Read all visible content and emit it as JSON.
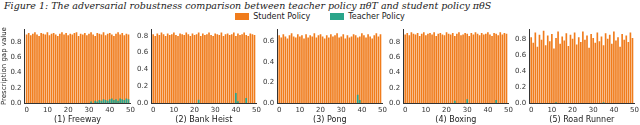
{
  "title": "Figure 1: The adversarial robustness comparison between teacher policy πθT and student policy πθS",
  "chart_data": [
    {
      "type": "bar",
      "x_label": "(1) Freeway",
      "y_label": "Prescription gap value",
      "grid": false,
      "x": [
        0,
        1,
        2,
        3,
        4,
        5,
        6,
        7,
        8,
        9,
        10,
        11,
        12,
        13,
        14,
        15,
        16,
        17,
        18,
        19,
        20,
        21,
        22,
        23,
        24,
        25,
        26,
        27,
        28,
        29,
        30,
        31,
        32,
        33,
        34,
        35,
        36,
        37,
        38,
        39,
        40,
        41,
        42,
        43,
        44,
        45,
        46,
        47,
        48,
        49
      ],
      "xlim": [
        -1,
        50
      ],
      "xticks": [
        0,
        10,
        20,
        30,
        40,
        50
      ],
      "ylim": [
        0,
        0.97
      ],
      "yticks": [
        {
          "value": 0,
          "label": "0.0"
        },
        0.2,
        0.4,
        0.6,
        0.8
      ],
      "series": [
        {
          "name": "Student Policy",
          "color": "#f07c1c",
          "values": [
            0.9,
            0.92,
            0.89,
            0.91,
            0.93,
            0.9,
            0.88,
            0.92,
            0.91,
            0.9,
            0.93,
            0.89,
            0.91,
            0.92,
            0.9,
            0.88,
            0.91,
            0.93,
            0.9,
            0.92,
            0.89,
            0.91,
            0.9,
            0.92,
            0.93,
            0.88,
            0.91,
            0.9,
            0.92,
            0.89,
            0.91,
            0.93,
            0.9,
            0.88,
            0.92,
            0.91,
            0.9,
            0.93,
            0.89,
            0.91,
            0.92,
            0.9,
            0.88,
            0.91,
            0.93,
            0.9,
            0.92,
            0.89,
            0.91,
            0.9
          ]
        },
        {
          "name": "Teacher Policy",
          "color": "#2aa58a",
          "values": [
            0,
            0,
            0,
            0,
            0,
            0,
            0,
            0,
            0,
            0,
            0,
            0,
            0,
            0,
            0,
            0,
            0,
            0,
            0,
            0,
            0,
            0,
            0,
            0,
            0,
            0,
            0,
            0,
            0,
            0,
            0,
            0.02,
            0,
            0.03,
            0.02,
            0.04,
            0.03,
            0.05,
            0.04,
            0.03,
            0.05,
            0.06,
            0.04,
            0.05,
            0.03,
            0.06,
            0.05,
            0.04,
            0.06,
            0.05
          ]
        }
      ]
    },
    {
      "type": "bar",
      "x_label": "(2) Bank Heist",
      "grid": false,
      "x": [
        0,
        1,
        2,
        3,
        4,
        5,
        6,
        7,
        8,
        9,
        10,
        11,
        12,
        13,
        14,
        15,
        16,
        17,
        18,
        19,
        20,
        21,
        22,
        23,
        24,
        25,
        26,
        27,
        28,
        29,
        30,
        31,
        32,
        33,
        34,
        35,
        36,
        37,
        38,
        39,
        40,
        41,
        42,
        43,
        44,
        45,
        46,
        47,
        48,
        49
      ],
      "xlim": [
        -1,
        50
      ],
      "xticks": [
        0,
        10,
        20,
        30,
        40,
        50
      ],
      "ylim": [
        0,
        0.88
      ],
      "yticks": [
        {
          "value": 0,
          "label": "0.0"
        },
        0.2,
        0.4,
        0.6,
        0.8
      ],
      "series": [
        {
          "name": "Student Policy",
          "color": "#f07c1c",
          "values": [
            0.82,
            0.8,
            0.83,
            0.81,
            0.84,
            0.82,
            0.8,
            0.83,
            0.81,
            0.82,
            0.84,
            0.81,
            0.8,
            0.83,
            0.82,
            0.81,
            0.84,
            0.82,
            0.8,
            0.83,
            0.81,
            0.82,
            0.84,
            0.8,
            0.83,
            0.81,
            0.82,
            0.84,
            0.81,
            0.8,
            0.83,
            0.82,
            0.81,
            0.84,
            0.8,
            0.82,
            0.83,
            0.81,
            0.82,
            0.84,
            0.8,
            0.83,
            0.81,
            0.82,
            0.84,
            0.81,
            0.8,
            0.83,
            0.82,
            0.81
          ]
        },
        {
          "name": "Teacher Policy",
          "color": "#2aa58a",
          "values": [
            0,
            0,
            0,
            0,
            0,
            0,
            0,
            0,
            0,
            0,
            0,
            0,
            0,
            0,
            0,
            0,
            0,
            0,
            0,
            0,
            0,
            0,
            0.04,
            0,
            0,
            0,
            0,
            0,
            0,
            0,
            0,
            0,
            0,
            0,
            0,
            0,
            0,
            0,
            0,
            0,
            0.12,
            0.02,
            0,
            0,
            0,
            0.06,
            0,
            0,
            0,
            0
          ]
        }
      ]
    },
    {
      "type": "bar",
      "x_label": "(3) Pong",
      "grid": false,
      "x": [
        0,
        1,
        2,
        3,
        4,
        5,
        6,
        7,
        8,
        9,
        10,
        11,
        12,
        13,
        14,
        15,
        16,
        17,
        18,
        19,
        20,
        21,
        22,
        23,
        24,
        25,
        26,
        27,
        28,
        29,
        30,
        31,
        32,
        33,
        34,
        35,
        36,
        37,
        38,
        39,
        40,
        41,
        42,
        43,
        44,
        45,
        46,
        47,
        48,
        49
      ],
      "xlim": [
        -1,
        50
      ],
      "xticks": [
        0,
        10,
        20,
        30,
        40,
        50
      ],
      "ylim": [
        0,
        0.72
      ],
      "yticks": [
        {
          "value": 0,
          "label": "0.0"
        },
        0.2,
        0.4,
        0.6
      ],
      "series": [
        {
          "name": "Student Policy",
          "color": "#f07c1c",
          "values": [
            0.66,
            0.64,
            0.67,
            0.65,
            0.63,
            0.66,
            0.68,
            0.65,
            0.64,
            0.67,
            0.65,
            0.66,
            0.63,
            0.67,
            0.64,
            0.66,
            0.65,
            0.68,
            0.64,
            0.66,
            0.67,
            0.65,
            0.63,
            0.66,
            0.64,
            0.67,
            0.65,
            0.66,
            0.68,
            0.64,
            0.65,
            0.67,
            0.63,
            0.66,
            0.64,
            0.65,
            0.67,
            0.66,
            0.64,
            0.65,
            0.68,
            0.66,
            0.64,
            0.67,
            0.65,
            0.63,
            0.66,
            0.68,
            0.65,
            0.67
          ]
        },
        {
          "name": "Teacher Policy",
          "color": "#2aa58a",
          "values": [
            0,
            0,
            0,
            0,
            0,
            0,
            0,
            0,
            0,
            0,
            0,
            0,
            0,
            0,
            0,
            0,
            0,
            0,
            0,
            0,
            0,
            0,
            0,
            0,
            0,
            0,
            0,
            0,
            0,
            0,
            0,
            0,
            0,
            0,
            0,
            0,
            0,
            0,
            0.08,
            0.03,
            0,
            0,
            0,
            0,
            0,
            0,
            0,
            0,
            0,
            0
          ]
        }
      ]
    },
    {
      "type": "bar",
      "x_label": "(4) Boxing",
      "grid": false,
      "x": [
        0,
        1,
        2,
        3,
        4,
        5,
        6,
        7,
        8,
        9,
        10,
        11,
        12,
        13,
        14,
        15,
        16,
        17,
        18,
        19,
        20,
        21,
        22,
        23,
        24,
        25,
        26,
        27,
        28,
        29,
        30,
        31,
        32,
        33,
        34,
        35,
        36,
        37,
        38,
        39,
        40,
        41,
        42,
        43,
        44,
        45,
        46,
        47,
        48,
        49
      ],
      "xlim": [
        -1,
        50
      ],
      "xticks": [
        0,
        10,
        20,
        30,
        40,
        50
      ],
      "ylim": [
        0,
        0.97
      ],
      "yticks": [
        {
          "value": 0,
          "label": "0.0"
        },
        0.2,
        0.4,
        0.6,
        0.8
      ],
      "series": [
        {
          "name": "Student Policy",
          "color": "#f07c1c",
          "values": [
            0.9,
            0.92,
            0.89,
            0.93,
            0.91,
            0.9,
            0.92,
            0.88,
            0.91,
            0.93,
            0.89,
            0.91,
            0.92,
            0.9,
            0.93,
            0.88,
            0.91,
            0.92,
            0.9,
            0.89,
            0.93,
            0.91,
            0.9,
            0.92,
            0.88,
            0.91,
            0.93,
            0.89,
            0.9,
            0.92,
            0.91,
            0.88,
            0.92,
            0.9,
            0.93,
            0.91,
            0.89,
            0.92,
            0.9,
            0.91,
            0.93,
            0.9,
            0.88,
            0.92,
            0.91,
            0.89,
            0.93,
            0.9,
            0.92,
            0.91
          ]
        },
        {
          "name": "Teacher Policy",
          "color": "#2aa58a",
          "values": [
            0,
            0,
            0,
            0,
            0,
            0,
            0,
            0,
            0,
            0,
            0,
            0,
            0,
            0,
            0,
            0,
            0,
            0,
            0,
            0,
            0,
            0,
            0,
            0,
            0.03,
            0,
            0,
            0,
            0,
            0,
            0.05,
            0,
            0,
            0,
            0,
            0,
            0,
            0,
            0,
            0,
            0,
            0,
            0,
            0,
            0.04,
            0,
            0,
            0,
            0,
            0
          ]
        }
      ]
    },
    {
      "type": "bar",
      "x_label": "(5) Road Runner",
      "grid": false,
      "x": [
        0,
        1,
        2,
        3,
        4,
        5,
        6,
        7,
        8,
        9,
        10,
        11,
        12,
        13,
        14,
        15,
        16,
        17,
        18,
        19,
        20,
        21,
        22,
        23,
        24,
        25,
        26,
        27,
        28,
        29,
        30,
        31,
        32,
        33,
        34,
        35,
        36,
        37,
        38,
        39,
        40,
        41,
        42,
        43,
        44,
        45,
        46,
        47,
        48,
        49
      ],
      "xlim": [
        -1,
        50
      ],
      "xticks": [
        0,
        10,
        20,
        30,
        40,
        50
      ],
      "ylim": [
        0,
        0.92
      ],
      "yticks": [
        {
          "value": 0,
          "label": "0.0"
        },
        0.2,
        0.4,
        0.6,
        0.8
      ],
      "series": [
        {
          "name": "Student Policy",
          "color": "#f07c1c",
          "values": [
            0.82,
            0.75,
            0.88,
            0.7,
            0.85,
            0.79,
            0.9,
            0.72,
            0.84,
            0.77,
            0.86,
            0.68,
            0.81,
            0.89,
            0.74,
            0.83,
            0.78,
            0.87,
            0.71,
            0.85,
            0.8,
            0.88,
            0.73,
            0.82,
            0.76,
            0.89,
            0.79,
            0.84,
            0.69,
            0.86,
            0.81,
            0.75,
            0.88,
            0.77,
            0.83,
            0.72,
            0.87,
            0.8,
            0.85,
            0.74,
            0.89,
            0.78,
            0.82,
            0.7,
            0.86,
            0.79,
            0.84,
            0.76,
            0.88,
            0.81
          ]
        },
        {
          "name": "Teacher Policy",
          "color": "#2aa58a",
          "values": [
            0,
            0,
            0,
            0,
            0,
            0,
            0,
            0,
            0,
            0,
            0,
            0,
            0.01,
            0,
            0,
            0,
            0,
            0,
            0,
            0,
            0,
            0,
            0,
            0,
            0,
            0,
            0,
            0,
            0,
            0,
            0,
            0,
            0,
            0,
            0,
            0.01,
            0,
            0,
            0,
            0,
            0,
            0,
            0,
            0,
            0,
            0,
            0,
            0,
            0,
            0
          ]
        }
      ]
    }
  ]
}
